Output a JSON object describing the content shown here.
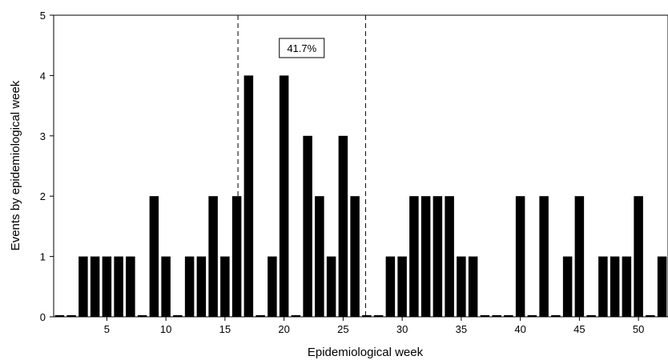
{
  "chart_data": {
    "type": "bar",
    "xlabel": "Epidemiological week",
    "ylabel": "Events by epidemiological week",
    "x": [
      1,
      2,
      3,
      4,
      5,
      6,
      7,
      8,
      9,
      10,
      11,
      12,
      13,
      14,
      15,
      16,
      17,
      18,
      19,
      20,
      21,
      22,
      23,
      24,
      25,
      26,
      27,
      28,
      29,
      30,
      31,
      32,
      33,
      34,
      35,
      36,
      37,
      38,
      39,
      40,
      41,
      42,
      43,
      44,
      45,
      46,
      47,
      48,
      49,
      50,
      51,
      52
    ],
    "values": [
      0,
      0,
      1,
      1,
      1,
      1,
      1,
      0,
      2,
      1,
      0,
      1,
      1,
      2,
      1,
      2,
      4,
      0,
      1,
      4,
      0,
      3,
      2,
      1,
      3,
      2,
      0,
      0,
      1,
      1,
      2,
      2,
      2,
      2,
      1,
      1,
      0,
      0,
      0,
      2,
      0,
      2,
      0,
      1,
      2,
      0,
      1,
      1,
      1,
      2,
      0,
      1
    ],
    "xticks": [
      5,
      10,
      15,
      20,
      25,
      30,
      35,
      40,
      45,
      50
    ],
    "yticks": [
      0,
      1,
      2,
      3,
      4,
      5
    ],
    "ylim": [
      0,
      5
    ],
    "xlim": [
      0,
      52
    ],
    "grid": false,
    "highlight_range": [
      15.6,
      26.4
    ],
    "annotation": "41.7%",
    "bar_color": "#000000"
  }
}
